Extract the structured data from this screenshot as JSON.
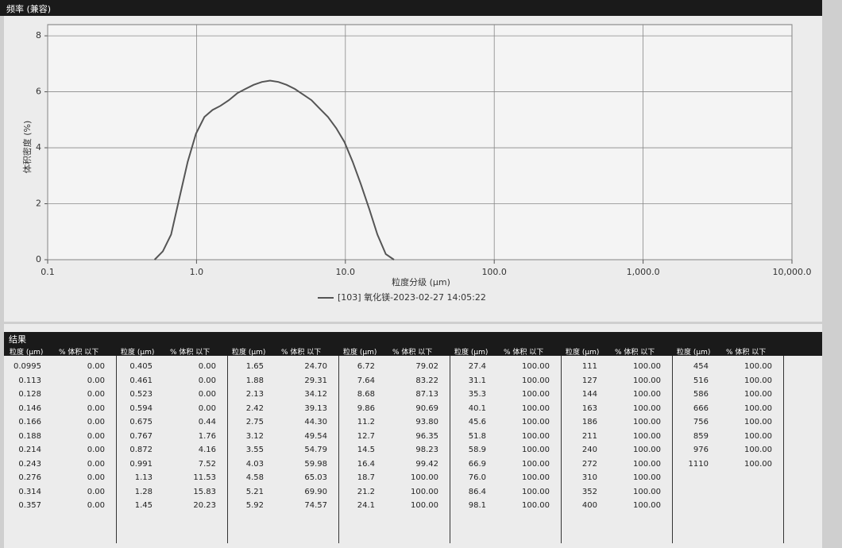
{
  "header": {
    "title": "频率 (兼容)"
  },
  "chart_data": {
    "type": "line",
    "y_label": "体积密度 (%)",
    "x_label": "粒度分级 (μm)",
    "x": [
      0.523,
      0.594,
      0.675,
      0.767,
      0.872,
      0.991,
      1.13,
      1.28,
      1.45,
      1.65,
      1.88,
      2.13,
      2.42,
      2.75,
      3.12,
      3.55,
      4.03,
      4.58,
      5.21,
      5.92,
      6.72,
      7.64,
      8.68,
      9.86,
      11.2,
      12.7,
      14.5,
      16.4,
      18.7,
      21.2
    ],
    "series": [
      {
        "name": "[103] 氧化镁-2023-02-27 14:05:22",
        "color": "#555555",
        "values": [
          0,
          0.3,
          0.9,
          2.2,
          3.5,
          4.5,
          5.1,
          5.35,
          5.5,
          5.7,
          5.95,
          6.1,
          6.25,
          6.35,
          6.4,
          6.35,
          6.25,
          6.1,
          5.9,
          5.7,
          5.4,
          5.1,
          4.7,
          4.2,
          3.5,
          2.7,
          1.8,
          0.9,
          0.2,
          0
        ]
      }
    ],
    "xlim": [
      0.1,
      10000
    ],
    "ylim": [
      0,
      8.4
    ],
    "log_x": true,
    "grid": true,
    "xticks": [
      0.1,
      {
        "value": 1,
        "label": "1.0"
      },
      {
        "value": 10,
        "label": "10.0"
      },
      {
        "value": 100,
        "label": "100.0"
      },
      {
        "value": 1000,
        "label": "1,000.0"
      },
      {
        "value": 10000,
        "label": "10,000.0"
      }
    ],
    "yticks": [
      0,
      2,
      4,
      6,
      8
    ]
  },
  "results": {
    "title": "结果",
    "headers": [
      "粒度 (μm)",
      "% 体积 以下"
    ],
    "groups": [
      [
        [
          "0.0995",
          "0.00"
        ],
        [
          "0.113",
          "0.00"
        ],
        [
          "0.128",
          "0.00"
        ],
        [
          "0.146",
          "0.00"
        ],
        [
          "0.166",
          "0.00"
        ],
        [
          "0.188",
          "0.00"
        ],
        [
          "0.214",
          "0.00"
        ],
        [
          "0.243",
          "0.00"
        ],
        [
          "0.276",
          "0.00"
        ],
        [
          "0.314",
          "0.00"
        ],
        [
          "0.357",
          "0.00"
        ]
      ],
      [
        [
          "0.405",
          "0.00"
        ],
        [
          "0.461",
          "0.00"
        ],
        [
          "0.523",
          "0.00"
        ],
        [
          "0.594",
          "0.00"
        ],
        [
          "0.675",
          "0.44"
        ],
        [
          "0.767",
          "1.76"
        ],
        [
          "0.872",
          "4.16"
        ],
        [
          "0.991",
          "7.52"
        ],
        [
          "1.13",
          "11.53"
        ],
        [
          "1.28",
          "15.83"
        ],
        [
          "1.45",
          "20.23"
        ]
      ],
      [
        [
          "1.65",
          "24.70"
        ],
        [
          "1.88",
          "29.31"
        ],
        [
          "2.13",
          "34.12"
        ],
        [
          "2.42",
          "39.13"
        ],
        [
          "2.75",
          "44.30"
        ],
        [
          "3.12",
          "49.54"
        ],
        [
          "3.55",
          "54.79"
        ],
        [
          "4.03",
          "59.98"
        ],
        [
          "4.58",
          "65.03"
        ],
        [
          "5.21",
          "69.90"
        ],
        [
          "5.92",
          "74.57"
        ]
      ],
      [
        [
          "6.72",
          "79.02"
        ],
        [
          "7.64",
          "83.22"
        ],
        [
          "8.68",
          "87.13"
        ],
        [
          "9.86",
          "90.69"
        ],
        [
          "11.2",
          "93.80"
        ],
        [
          "12.7",
          "96.35"
        ],
        [
          "14.5",
          "98.23"
        ],
        [
          "16.4",
          "99.42"
        ],
        [
          "18.7",
          "100.00"
        ],
        [
          "21.2",
          "100.00"
        ],
        [
          "24.1",
          "100.00"
        ]
      ],
      [
        [
          "27.4",
          "100.00"
        ],
        [
          "31.1",
          "100.00"
        ],
        [
          "35.3",
          "100.00"
        ],
        [
          "40.1",
          "100.00"
        ],
        [
          "45.6",
          "100.00"
        ],
        [
          "51.8",
          "100.00"
        ],
        [
          "58.9",
          "100.00"
        ],
        [
          "66.9",
          "100.00"
        ],
        [
          "76.0",
          "100.00"
        ],
        [
          "86.4",
          "100.00"
        ],
        [
          "98.1",
          "100.00"
        ]
      ],
      [
        [
          "111",
          "100.00"
        ],
        [
          "127",
          "100.00"
        ],
        [
          "144",
          "100.00"
        ],
        [
          "163",
          "100.00"
        ],
        [
          "186",
          "100.00"
        ],
        [
          "211",
          "100.00"
        ],
        [
          "240",
          "100.00"
        ],
        [
          "272",
          "100.00"
        ],
        [
          "310",
          "100.00"
        ],
        [
          "352",
          "100.00"
        ],
        [
          "400",
          "100.00"
        ]
      ],
      [
        [
          "454",
          "100.00"
        ],
        [
          "516",
          "100.00"
        ],
        [
          "586",
          "100.00"
        ],
        [
          "666",
          "100.00"
        ],
        [
          "756",
          "100.00"
        ],
        [
          "859",
          "100.00"
        ],
        [
          "976",
          "100.00"
        ],
        [
          "1110",
          "100.00"
        ]
      ]
    ]
  }
}
